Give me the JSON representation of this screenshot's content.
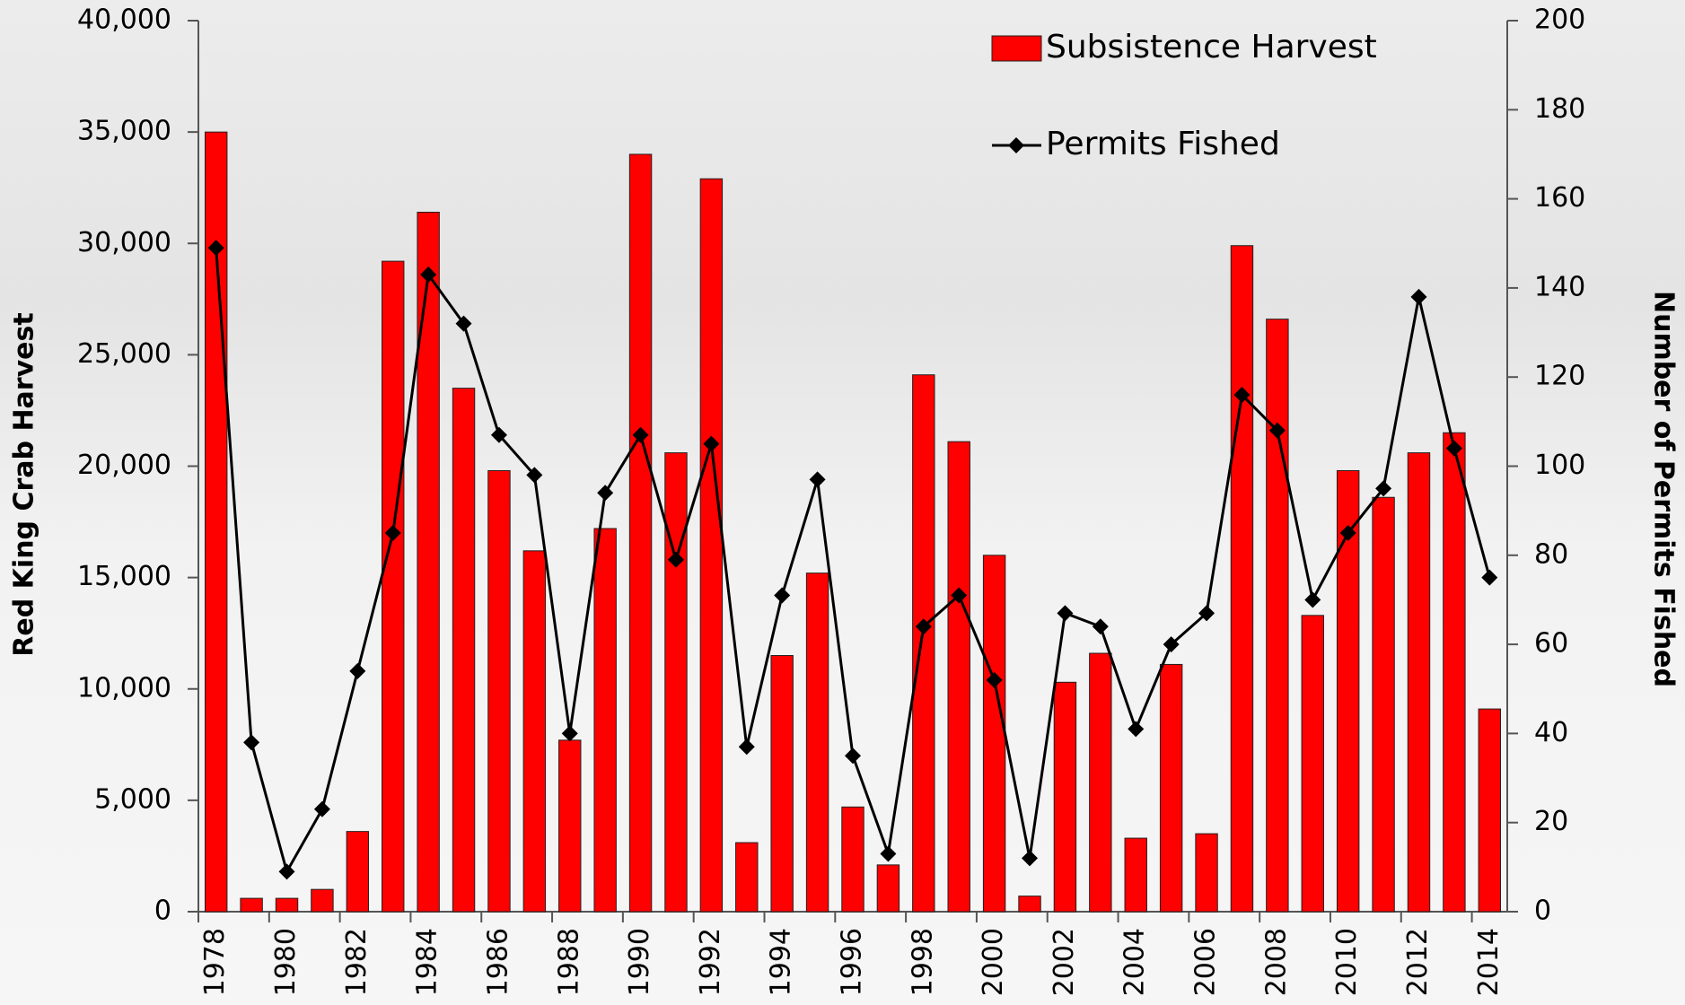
{
  "chart_data": {
    "type": "bar-line",
    "y_label": "Red King Crab Harvest",
    "y2_label": "Number of Permits Fished",
    "categories": [
      "1978",
      null,
      "1980",
      null,
      "1982",
      null,
      "1984",
      null,
      "1986",
      null,
      "1988",
      null,
      "1990",
      null,
      "1992",
      null,
      "1994",
      null,
      "1996",
      null,
      "1998",
      null,
      "2000",
      null,
      "2002",
      null,
      "2004",
      null,
      "2006",
      null,
      "2008",
      null,
      "2010",
      null,
      "2012",
      null,
      "2014"
    ],
    "series": [
      {
        "name": "Subsistence Harvest",
        "type": "bar",
        "color": "#ff0000",
        "values": [
          35000,
          600,
          600,
          1000,
          3600,
          29200,
          31400,
          23500,
          19800,
          16200,
          7700,
          17200,
          34000,
          20600,
          32900,
          3100,
          11500,
          15200,
          4700,
          2100,
          24100,
          21100,
          16000,
          700,
          10300,
          11600,
          3300,
          11100,
          3500,
          29900,
          26600,
          13300,
          19800,
          18600,
          20600,
          21500,
          9100
        ]
      },
      {
        "name": "Permits Fished",
        "type": "line",
        "axis": "y2",
        "color": "#000000",
        "values": [
          149,
          38,
          9,
          23,
          54,
          85,
          143,
          132,
          107,
          98,
          40,
          94,
          107,
          79,
          105,
          37,
          71,
          97,
          35,
          13,
          64,
          71,
          52,
          12,
          67,
          64,
          41,
          60,
          67,
          116,
          108,
          70,
          85,
          95,
          138,
          104,
          75
        ]
      }
    ],
    "ylim": [
      0,
      40000
    ],
    "yticks": [
      0,
      {
        "value": 5000,
        "label": "5,000"
      },
      {
        "value": 10000,
        "label": "10,000"
      },
      {
        "value": 15000,
        "label": "15,000"
      },
      {
        "value": 20000,
        "label": "20,000"
      },
      {
        "value": 25000,
        "label": "25,000"
      },
      {
        "value": 30000,
        "label": "30,000"
      },
      {
        "value": 35000,
        "label": "35,000"
      },
      {
        "value": 40000,
        "label": "40,000"
      }
    ],
    "y2lim": [
      0,
      200
    ],
    "y2ticks": [
      0,
      20,
      40,
      60,
      80,
      100,
      120,
      140,
      160,
      180,
      200
    ],
    "legend": "top-right"
  }
}
